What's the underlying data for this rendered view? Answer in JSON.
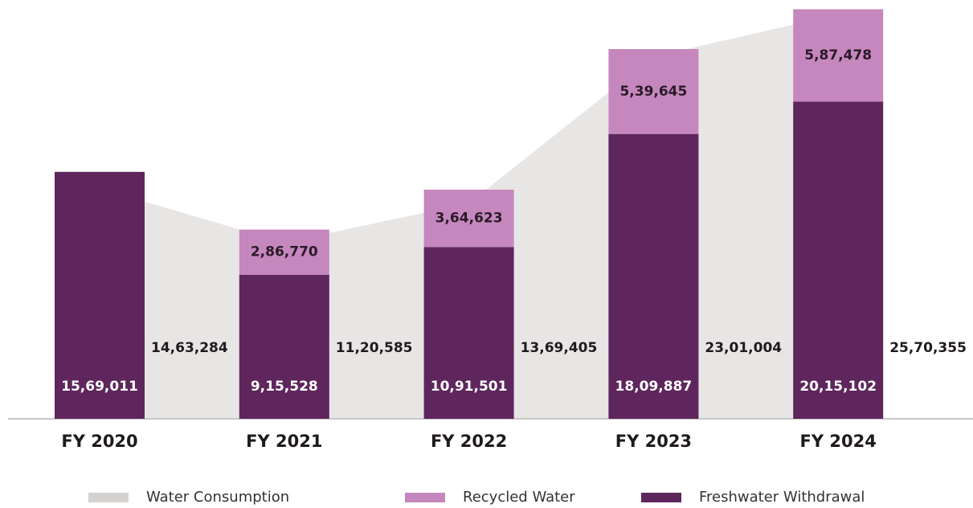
{
  "chart_data": {
    "type": "bar",
    "categories": [
      "FY 2020",
      "FY 2021",
      "FY 2022",
      "FY 2023",
      "FY 2024"
    ],
    "series": [
      {
        "name": "Water Consumption",
        "color": "#d4d2d0",
        "kind": "area",
        "values": [
          1463284,
          1120585,
          1369405,
          2301004,
          2570355
        ],
        "value_labels": [
          "14,63,284",
          "11,20,585",
          "13,69,405",
          "23,01,004",
          "25,70,355"
        ]
      },
      {
        "name": "Freshwater Withdrawal",
        "color": "#5e265c",
        "kind": "stack",
        "values": [
          1569011,
          915528,
          1091501,
          1809887,
          2015102
        ],
        "value_labels": [
          "15,69,011",
          "9,15,528",
          "10,91,501",
          "18,09,887",
          "20,15,102"
        ]
      },
      {
        "name": "Recycled Water",
        "color": "#c587bd",
        "kind": "stack",
        "values": [
          null,
          286770,
          364623,
          539645,
          587478
        ],
        "value_labels": [
          null,
          "2,86,770",
          "3,64,623",
          "5,39,645",
          "5,87,478"
        ]
      }
    ],
    "legend_order": [
      0,
      2,
      1
    ],
    "ylim": [
      0,
      2600000
    ]
  }
}
